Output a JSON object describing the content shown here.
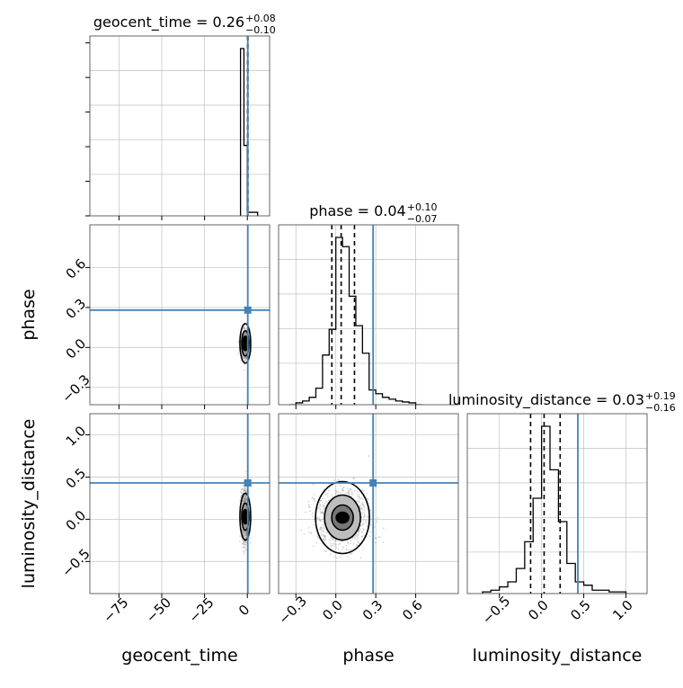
{
  "chart_data": {
    "type": "corner",
    "parameters": [
      {
        "name": "geocent_time",
        "label": "geocent_time",
        "title": {
          "prefix": "geocent_time = 0.26",
          "sup": "+0.08",
          "sub": "−0.10"
        },
        "range": [
          -92,
          13
        ],
        "ticks": [
          -75,
          -50,
          -25,
          0
        ],
        "tick_labels": [
          "−75",
          "−50",
          "−25",
          "0"
        ],
        "truth": 0.26,
        "quantiles": [
          0.16,
          0.26,
          0.34
        ],
        "hist": {
          "edges": [
            -4,
            -2,
            0,
            2,
            4,
            6
          ],
          "values": [
            0.95,
            0.4,
            0.02,
            0.02,
            0.02
          ]
        }
      },
      {
        "name": "phase",
        "label": "phase",
        "title": {
          "prefix": "phase = 0.04",
          "sup": "+0.10",
          "sub": "−0.07"
        },
        "range": [
          -0.43,
          0.92
        ],
        "ticks": [
          -0.3,
          0.0,
          0.3,
          0.6
        ],
        "tick_labels": [
          "−0.3",
          "0.0",
          "0.3",
          "0.6"
        ],
        "truth": 0.28,
        "quantiles": [
          -0.03,
          0.04,
          0.14
        ],
        "hist": {
          "edges": [
            -0.35,
            -0.3,
            -0.25,
            -0.2,
            -0.15,
            -0.1,
            -0.05,
            0.0,
            0.05,
            0.1,
            0.15,
            0.2,
            0.25,
            0.3,
            0.35,
            0.4,
            0.45,
            0.5,
            0.55,
            0.6,
            0.65
          ],
          "values": [
            0.0,
            0.01,
            0.02,
            0.04,
            0.09,
            0.27,
            0.41,
            0.91,
            0.86,
            0.59,
            0.43,
            0.28,
            0.08,
            0.06,
            0.04,
            0.03,
            0.02,
            0.015,
            0.01,
            0.0
          ]
        }
      },
      {
        "name": "luminosity_distance",
        "label": "luminosity_distance",
        "title": {
          "prefix": "luminosity_distance = 0.03",
          "sup": "+0.19",
          "sub": "−0.16"
        },
        "range": [
          -0.88,
          1.25
        ],
        "ticks": [
          -0.5,
          0.0,
          0.5,
          1.0
        ],
        "tick_labels": [
          "−0.5",
          "0.0",
          "0.5",
          "1.0"
        ],
        "truth": 0.43,
        "quantiles": [
          -0.13,
          0.03,
          0.22
        ],
        "hist": {
          "edges": [
            -0.7,
            -0.6,
            -0.5,
            -0.4,
            -0.3,
            -0.2,
            -0.1,
            0.0,
            0.1,
            0.2,
            0.3,
            0.4,
            0.5,
            0.6,
            0.7,
            0.8,
            0.9,
            1.0
          ],
          "values": [
            0.01,
            0.02,
            0.04,
            0.07,
            0.15,
            0.31,
            0.57,
            1.0,
            0.74,
            0.43,
            0.18,
            0.07,
            0.05,
            0.02,
            0.02,
            0.01,
            0.01
          ]
        }
      }
    ],
    "truth_color": "#4682b4",
    "scatter_color": "#888888",
    "contour_color": "#000000",
    "grid": true
  }
}
